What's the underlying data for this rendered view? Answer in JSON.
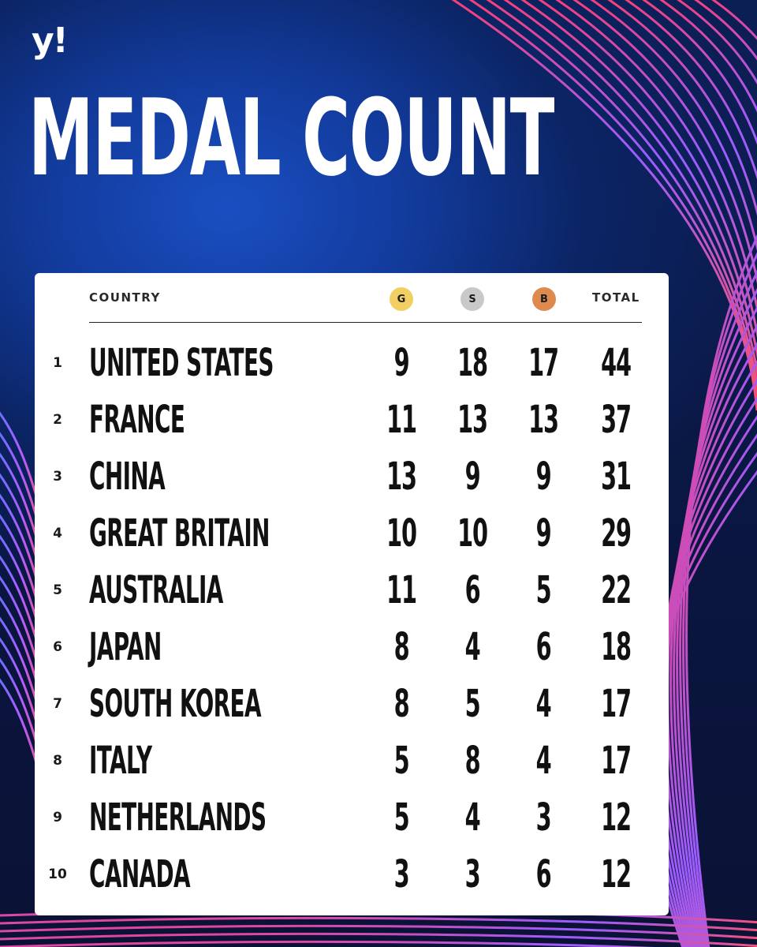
{
  "brand": {
    "logo_text": "y!"
  },
  "title": "MEDAL COUNT",
  "table": {
    "headers": {
      "country": "COUNTRY",
      "gold": "G",
      "silver": "S",
      "bronze": "B",
      "total": "TOTAL"
    },
    "colors": {
      "gold": "#f2cf63",
      "silver": "#c9c9c9",
      "bronze": "#de8a4f"
    },
    "rows": [
      {
        "rank": "1",
        "country": "UNITED STATES",
        "gold": "9",
        "silver": "18",
        "bronze": "17",
        "total": "44"
      },
      {
        "rank": "2",
        "country": "FRANCE",
        "gold": "11",
        "silver": "13",
        "bronze": "13",
        "total": "37"
      },
      {
        "rank": "3",
        "country": "CHINA",
        "gold": "13",
        "silver": "9",
        "bronze": "9",
        "total": "31"
      },
      {
        "rank": "4",
        "country": "GREAT BRITAIN",
        "gold": "10",
        "silver": "10",
        "bronze": "9",
        "total": "29"
      },
      {
        "rank": "5",
        "country": "AUSTRALIA",
        "gold": "11",
        "silver": "6",
        "bronze": "5",
        "total": "22"
      },
      {
        "rank": "6",
        "country": "JAPAN",
        "gold": "8",
        "silver": "4",
        "bronze": "6",
        "total": "18"
      },
      {
        "rank": "7",
        "country": "SOUTH KOREA",
        "gold": "8",
        "silver": "5",
        "bronze": "4",
        "total": "17"
      },
      {
        "rank": "8",
        "country": "ITALY",
        "gold": "5",
        "silver": "8",
        "bronze": "4",
        "total": "17"
      },
      {
        "rank": "9",
        "country": "NETHERLANDS",
        "gold": "5",
        "silver": "4",
        "bronze": "3",
        "total": "12"
      },
      {
        "rank": "10",
        "country": "CANADA",
        "gold": "3",
        "silver": "3",
        "bronze": "6",
        "total": "12"
      }
    ]
  }
}
